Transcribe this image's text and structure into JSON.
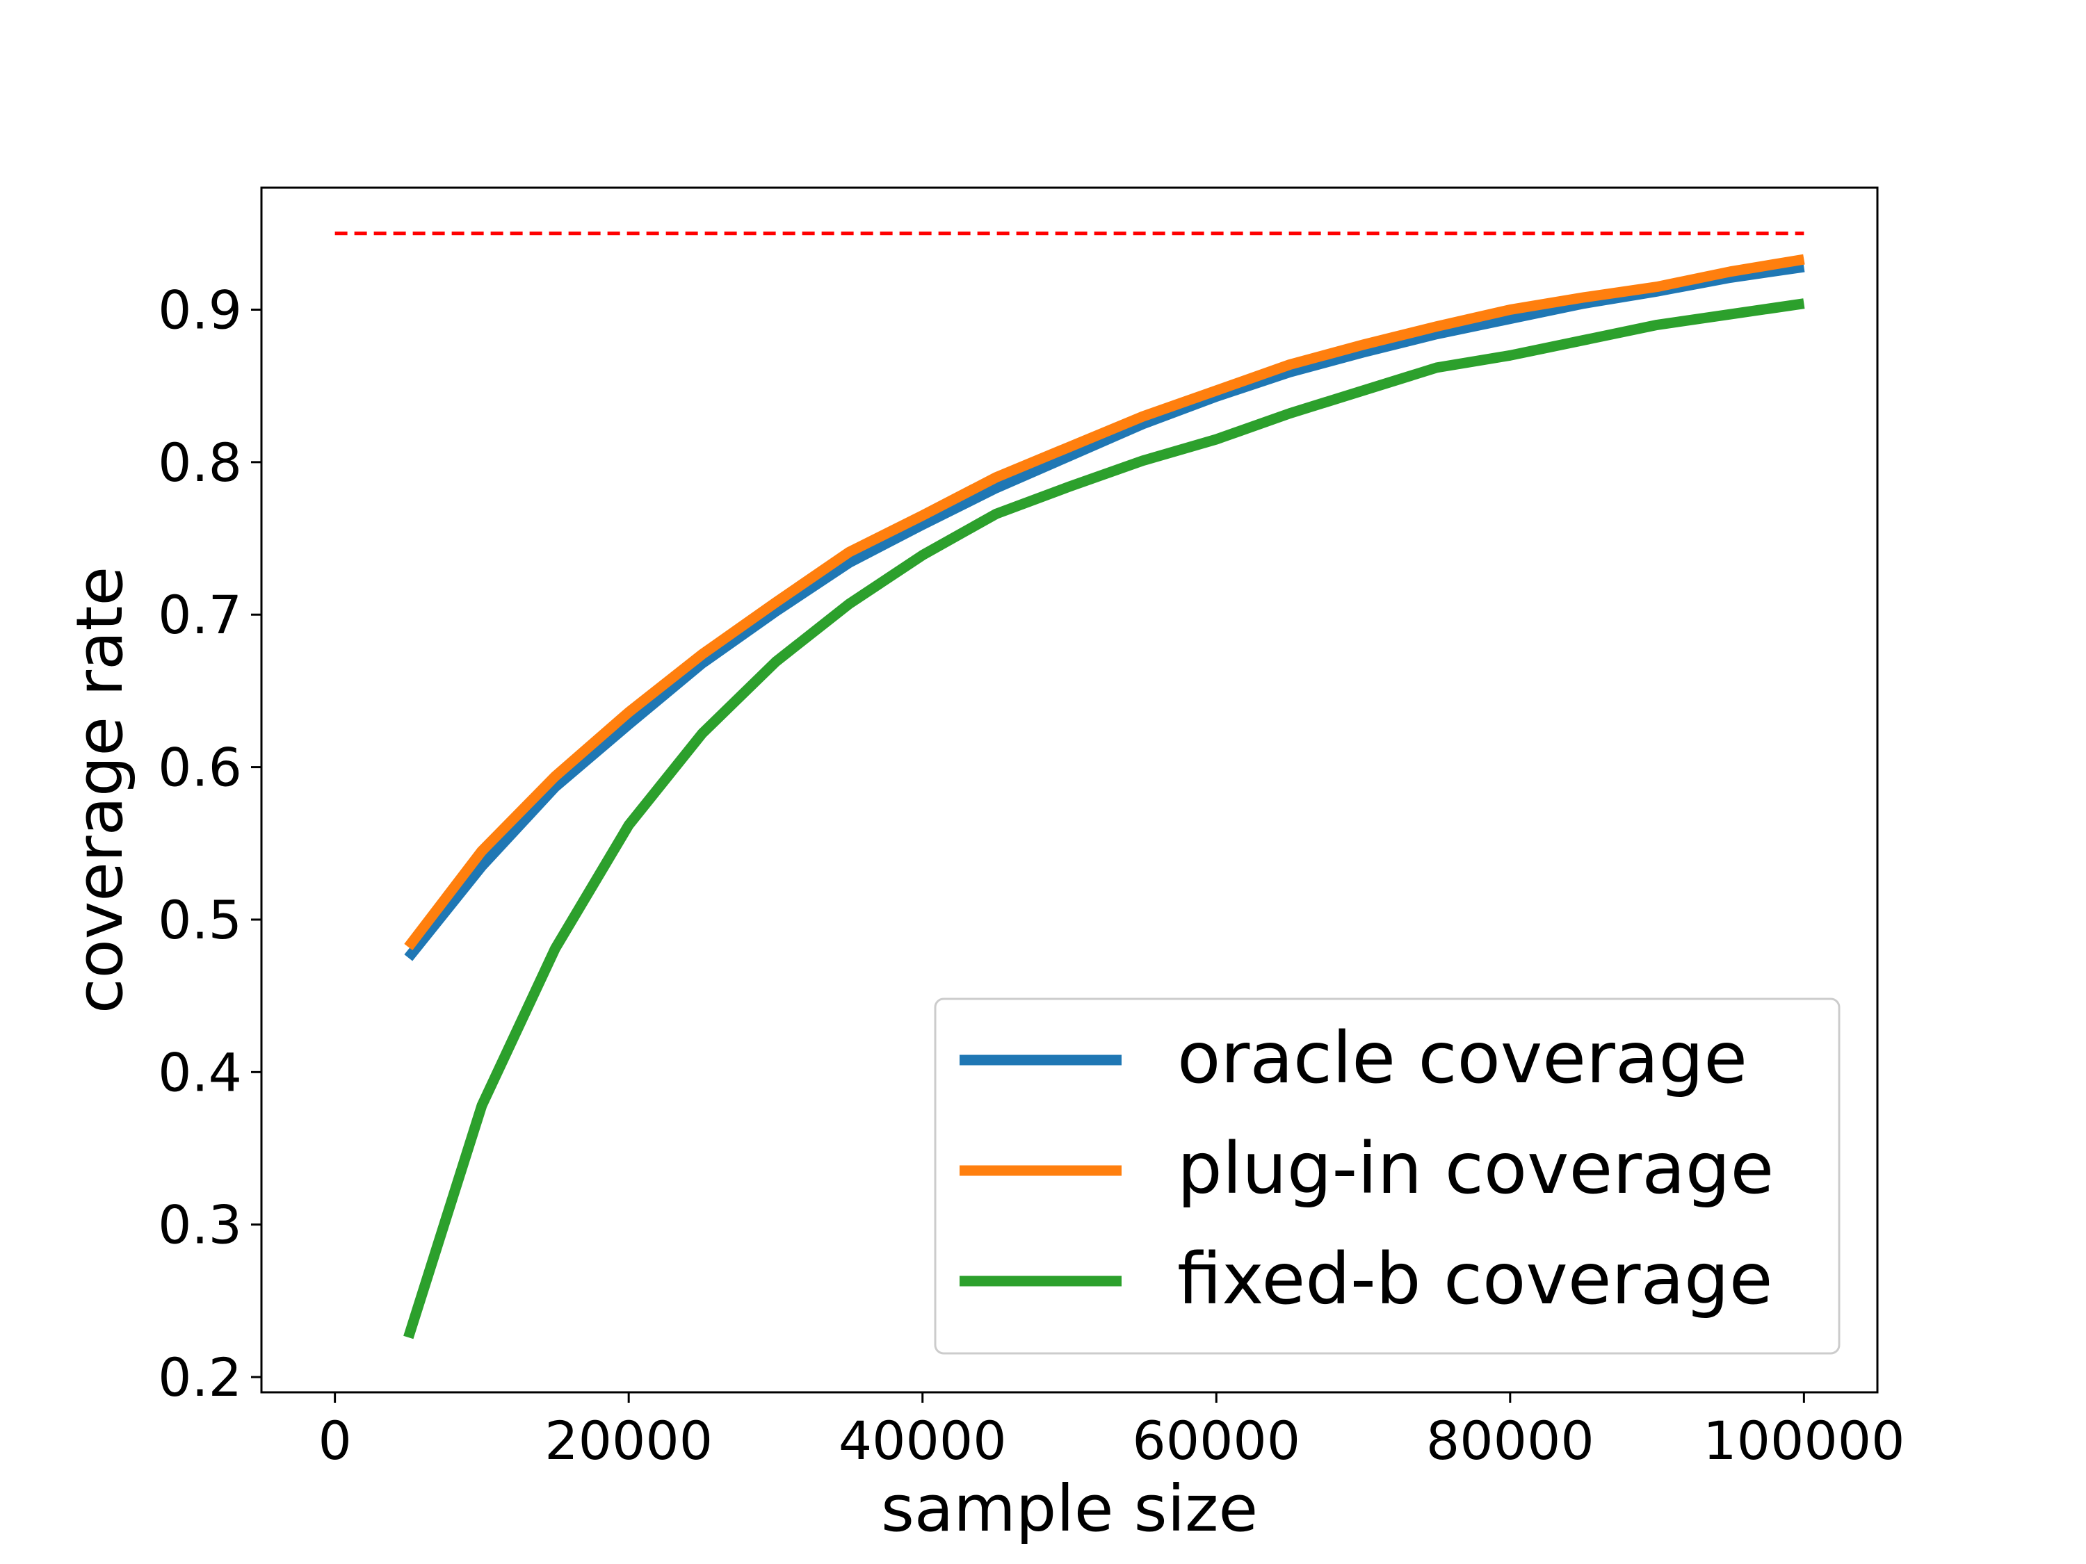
{
  "chart_data": {
    "type": "line",
    "title": "",
    "xlabel": "sample size",
    "ylabel": "coverage rate",
    "xlim": [
      -5000,
      105000
    ],
    "ylim": [
      0.19,
      0.98
    ],
    "xticks": [
      0,
      20000,
      40000,
      60000,
      80000,
      100000
    ],
    "xtick_labels": [
      "0",
      "20000",
      "40000",
      "60000",
      "80000",
      "100000"
    ],
    "yticks": [
      0.2,
      0.3,
      0.4,
      0.5,
      0.6,
      0.7,
      0.8,
      0.9
    ],
    "ytick_labels": [
      "0.2",
      "0.3",
      "0.4",
      "0.5",
      "0.6",
      "0.7",
      "0.8",
      "0.9"
    ],
    "grid": false,
    "legend_position": "lower-right",
    "x": [
      5000,
      10000,
      15000,
      20000,
      25000,
      30000,
      35000,
      40000,
      45000,
      50000,
      55000,
      60000,
      65000,
      70000,
      75000,
      80000,
      85000,
      90000,
      95000,
      100000
    ],
    "series": [
      {
        "name": "oracle coverage",
        "color": "#1f77b4",
        "values": [
          0.475,
          0.535,
          0.587,
          0.628,
          0.668,
          0.702,
          0.734,
          0.759,
          0.783,
          0.804,
          0.825,
          0.843,
          0.859,
          0.872,
          0.884,
          0.894,
          0.904,
          0.912,
          0.921,
          0.928
        ]
      },
      {
        "name": "plug-in coverage",
        "color": "#ff7f0e",
        "values": [
          0.482,
          0.545,
          0.594,
          0.636,
          0.674,
          0.708,
          0.741,
          0.765,
          0.79,
          0.81,
          0.83,
          0.847,
          0.864,
          0.877,
          0.889,
          0.9,
          0.908,
          0.915,
          0.925,
          0.933
        ]
      },
      {
        "name": "fixed-b coverage",
        "color": "#2ca02c",
        "values": [
          0.226,
          0.378,
          0.481,
          0.562,
          0.622,
          0.669,
          0.707,
          0.739,
          0.766,
          0.784,
          0.801,
          0.815,
          0.832,
          0.847,
          0.862,
          0.87,
          0.88,
          0.89,
          0.897,
          0.904
        ]
      }
    ],
    "reference_line": {
      "y": 0.95,
      "x_range": [
        0,
        100000
      ],
      "style": "dashed",
      "color": "#ff0000"
    }
  }
}
